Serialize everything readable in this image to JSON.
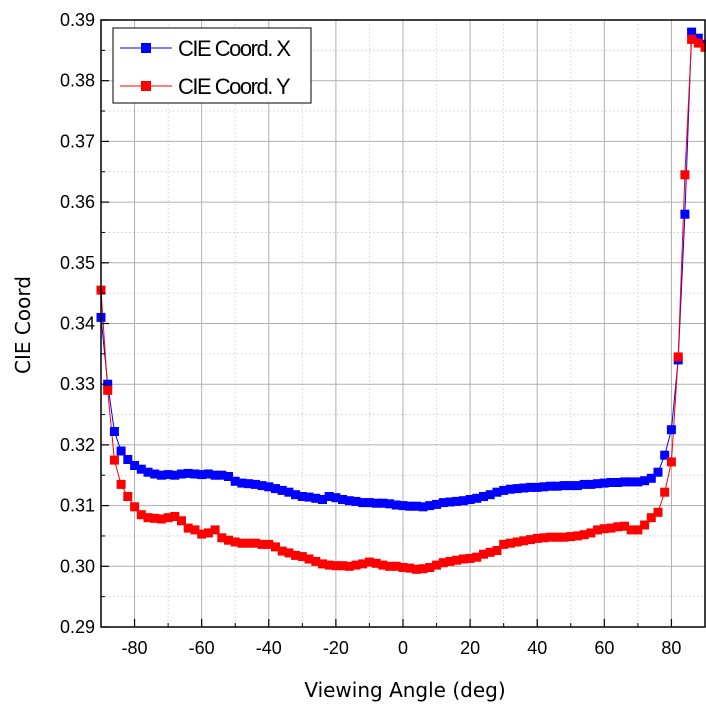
{
  "chart_data": {
    "type": "line",
    "xlabel": "Viewing Angle (deg)",
    "ylabel": "CIE Coord",
    "xlim": [
      -90,
      90
    ],
    "ylim": [
      0.29,
      0.39
    ],
    "x_ticks": [
      "-80",
      "-60",
      "-40",
      "-20",
      "0",
      "20",
      "40",
      "60",
      "80"
    ],
    "y_ticks": [
      "0.29",
      "0.30",
      "0.31",
      "0.32",
      "0.33",
      "0.34",
      "0.35",
      "0.36",
      "0.37",
      "0.38",
      "0.39"
    ],
    "grid": true,
    "legend_position": "top-left",
    "series": [
      {
        "name": "CIE Coord. X",
        "color": "#0000ff",
        "marker": "square",
        "x": [
          -90,
          -88,
          -86,
          -84,
          -82,
          -80,
          -78,
          -76,
          -74,
          -72,
          -70,
          -68,
          -66,
          -64,
          -62,
          -60,
          -58,
          -56,
          -54,
          -52,
          -50,
          -48,
          -46,
          -44,
          -42,
          -40,
          -38,
          -36,
          -34,
          -32,
          -30,
          -28,
          -26,
          -24,
          -22,
          -20,
          -18,
          -16,
          -14,
          -12,
          -10,
          -8,
          -6,
          -4,
          -2,
          0,
          2,
          4,
          6,
          8,
          10,
          12,
          14,
          16,
          18,
          20,
          22,
          24,
          26,
          28,
          30,
          32,
          34,
          36,
          38,
          40,
          42,
          44,
          46,
          48,
          50,
          52,
          54,
          56,
          58,
          60,
          62,
          64,
          66,
          68,
          70,
          72,
          74,
          76,
          78,
          80,
          82,
          84,
          86,
          88,
          90
        ],
        "values": [
          0.341,
          0.33,
          0.3222,
          0.319,
          0.3176,
          0.3166,
          0.316,
          0.3155,
          0.3152,
          0.315,
          0.3151,
          0.315,
          0.3152,
          0.3153,
          0.3152,
          0.3151,
          0.3152,
          0.315,
          0.315,
          0.3148,
          0.314,
          0.3137,
          0.3136,
          0.3135,
          0.3133,
          0.3131,
          0.3128,
          0.3125,
          0.3122,
          0.3118,
          0.3115,
          0.3114,
          0.3112,
          0.311,
          0.3115,
          0.3113,
          0.311,
          0.3108,
          0.3107,
          0.3105,
          0.3105,
          0.3104,
          0.3104,
          0.3103,
          0.3101,
          0.31,
          0.3099,
          0.3099,
          0.3098,
          0.31,
          0.3102,
          0.3105,
          0.3106,
          0.3107,
          0.3108,
          0.311,
          0.3112,
          0.3115,
          0.3118,
          0.3122,
          0.3125,
          0.3127,
          0.3128,
          0.3129,
          0.313,
          0.313,
          0.3131,
          0.3132,
          0.3132,
          0.3133,
          0.3133,
          0.3133,
          0.3135,
          0.3135,
          0.3136,
          0.3137,
          0.3138,
          0.3138,
          0.3139,
          0.3139,
          0.3139,
          0.3141,
          0.3145,
          0.3155,
          0.3183,
          0.3225,
          0.334,
          0.358,
          0.388,
          0.387,
          0.386
        ]
      },
      {
        "name": "CIE Coord. Y",
        "color": "#ff0000",
        "marker": "square",
        "x": [
          -90,
          -88,
          -86,
          -84,
          -82,
          -80,
          -78,
          -76,
          -74,
          -72,
          -70,
          -68,
          -66,
          -64,
          -62,
          -60,
          -58,
          -56,
          -54,
          -52,
          -50,
          -48,
          -46,
          -44,
          -42,
          -40,
          -38,
          -36,
          -34,
          -32,
          -30,
          -28,
          -26,
          -24,
          -22,
          -20,
          -18,
          -16,
          -14,
          -12,
          -10,
          -8,
          -6,
          -4,
          -2,
          0,
          2,
          4,
          6,
          8,
          10,
          12,
          14,
          16,
          18,
          20,
          22,
          24,
          26,
          28,
          30,
          32,
          34,
          36,
          38,
          40,
          42,
          44,
          46,
          48,
          50,
          52,
          54,
          56,
          58,
          60,
          62,
          64,
          66,
          68,
          70,
          72,
          74,
          76,
          78,
          80,
          82,
          84,
          86,
          88,
          90
        ],
        "values": [
          0.3455,
          0.329,
          0.3175,
          0.3135,
          0.3115,
          0.3098,
          0.3085,
          0.308,
          0.3079,
          0.3078,
          0.308,
          0.3082,
          0.3075,
          0.3063,
          0.306,
          0.3053,
          0.3055,
          0.306,
          0.3047,
          0.3043,
          0.304,
          0.3038,
          0.3038,
          0.3038,
          0.3036,
          0.3036,
          0.3032,
          0.3025,
          0.3022,
          0.3018,
          0.3016,
          0.3012,
          0.3008,
          0.3004,
          0.3002,
          0.3001,
          0.3001,
          0.3,
          0.3002,
          0.3004,
          0.3007,
          0.3005,
          0.3002,
          0.3,
          0.3,
          0.2998,
          0.2997,
          0.2995,
          0.2996,
          0.2998,
          0.3002,
          0.3006,
          0.3008,
          0.301,
          0.3012,
          0.3013,
          0.3015,
          0.302,
          0.3023,
          0.3026,
          0.3036,
          0.3038,
          0.304,
          0.3042,
          0.3044,
          0.3046,
          0.3047,
          0.3048,
          0.3048,
          0.3048,
          0.3049,
          0.305,
          0.3052,
          0.3055,
          0.306,
          0.3062,
          0.3063,
          0.3065,
          0.3066,
          0.306,
          0.306,
          0.3068,
          0.308,
          0.3089,
          0.3122,
          0.3172,
          0.3345,
          0.3645,
          0.3868,
          0.3862,
          0.3855
        ]
      }
    ]
  }
}
